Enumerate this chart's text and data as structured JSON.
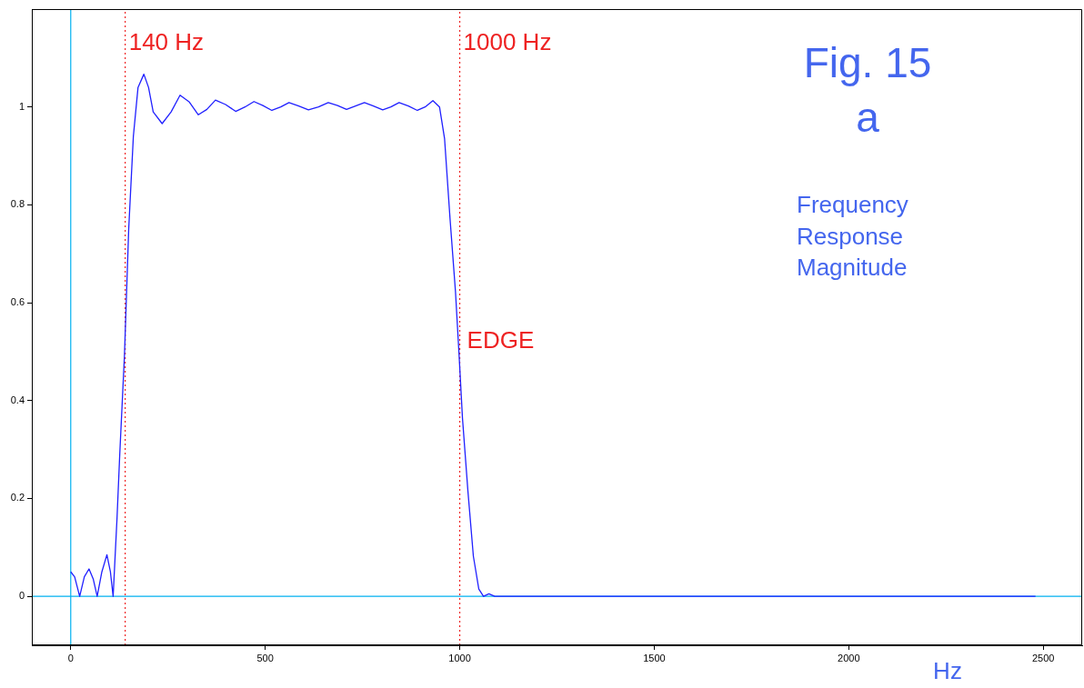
{
  "chart_data": {
    "type": "line",
    "xlabel": "Hz",
    "annotations": [
      "Fig. 15\na",
      "Frequency\nResponse\nMagnitude",
      {
        "text": "EDGE",
        "x": 1000,
        "y": 0.5
      }
    ],
    "xlim": [
      -100,
      2600
    ],
    "xticks": [
      0,
      500,
      1000,
      1500,
      2000,
      2500
    ],
    "ylim": [
      -0.1,
      1.2
    ],
    "yticks": [
      0,
      0.2,
      0.4,
      0.6,
      0.8,
      1
    ],
    "grid": false,
    "legend": false,
    "marker": "none",
    "line_style": "solid",
    "ref_lines": [
      {
        "axis": "x",
        "value": 0,
        "label": null,
        "color": "#00b0f0",
        "line_style": "solid"
      },
      {
        "axis": "y",
        "value": 0,
        "label": null,
        "color": "#00b0f0",
        "line_style": "solid"
      },
      {
        "axis": "x",
        "value": 140,
        "label": "140 Hz",
        "color": "#ee2222",
        "line_style": "dotted"
      },
      {
        "axis": "x",
        "value": 1000,
        "label": "1000 Hz",
        "color": "#ee2222",
        "line_style": "dotted"
      }
    ],
    "series": [
      {
        "color": "#2020ff",
        "x": [
          0,
          10,
          23,
          35,
          47,
          58,
          68,
          80,
          93,
          102,
          109,
          119,
          126,
          138,
          149,
          161,
          173,
          188,
          200,
          212,
          235,
          258,
          281,
          305,
          328,
          350,
          372,
          398,
          424,
          448,
          471,
          494,
          517,
          540,
          561,
          586,
          611,
          637,
          662,
          686,
          709,
          732,
          755,
          778,
          802,
          823,
          844,
          868,
          891,
          911,
          931,
          948,
          961,
          975,
          989,
          998,
          1007,
          1021,
          1035,
          1049,
          1061,
          1075,
          1090,
          1500,
          2000,
          2480
        ],
        "values": [
          0.05,
          0.04,
          0,
          0.04,
          0.056,
          0.035,
          0,
          0.05,
          0.085,
          0.05,
          0,
          0.16,
          0.29,
          0.49,
          0.75,
          0.94,
          1.04,
          1.067,
          1.04,
          0.99,
          0.966,
          0.99,
          1.024,
          1.01,
          0.984,
          0.995,
          1.014,
          1.005,
          0.991,
          1.0,
          1.011,
          1.003,
          0.993,
          1.0,
          1.009,
          1.002,
          0.994,
          1.0,
          1.009,
          1.003,
          0.995,
          1.002,
          1.009,
          1.002,
          0.994,
          1.0,
          1.009,
          1.002,
          0.993,
          1.0,
          1.013,
          1.0,
          0.935,
          0.772,
          0.623,
          0.497,
          0.364,
          0.215,
          0.082,
          0.015,
          0,
          0.005,
          0,
          0,
          0,
          0
        ]
      }
    ]
  }
}
